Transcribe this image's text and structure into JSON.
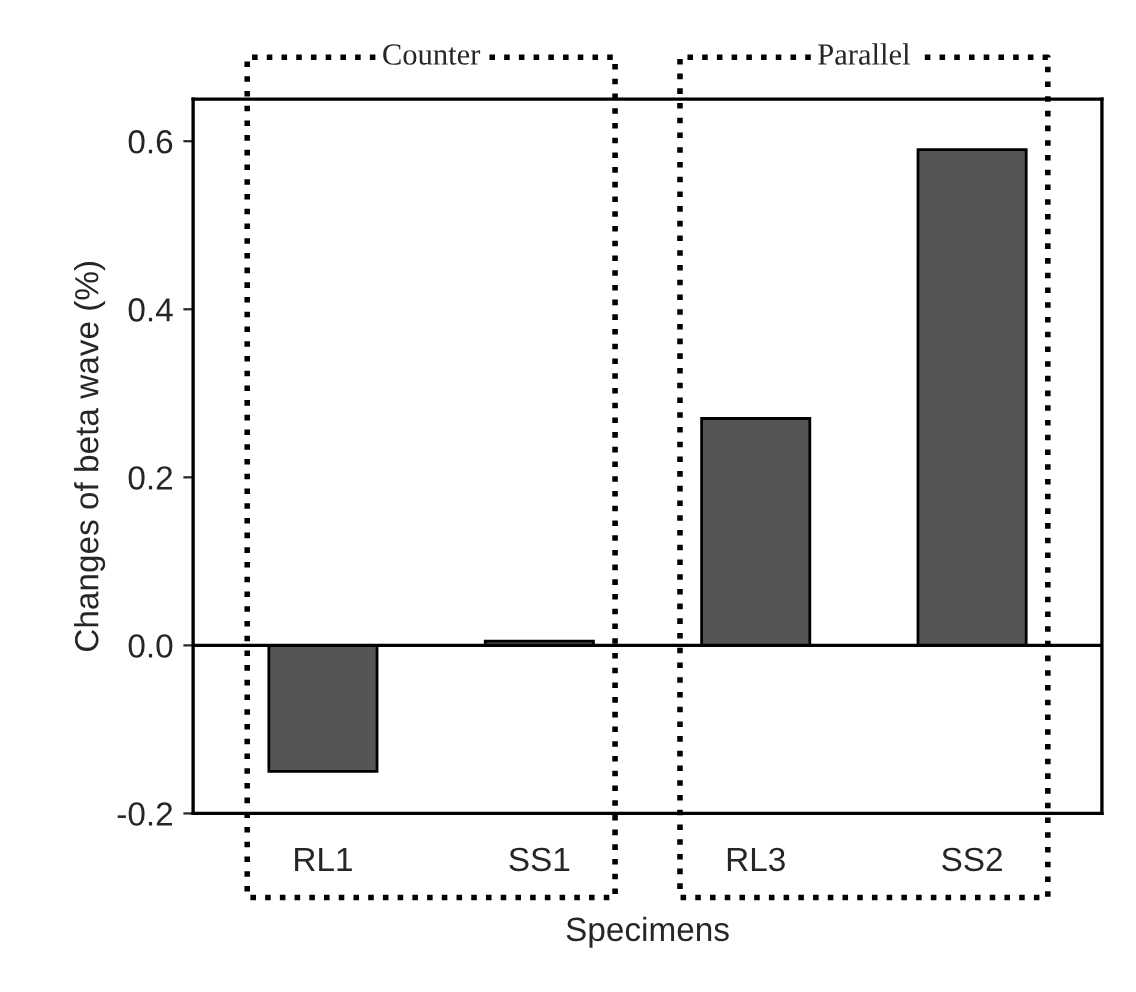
{
  "chart_data": {
    "type": "bar",
    "categories": [
      "RL1",
      "SS1",
      "RL3",
      "SS2"
    ],
    "values": [
      -0.15,
      0.005,
      0.27,
      0.59
    ],
    "color": "#555555",
    "xlabel": "Specimens",
    "ylabel": "Changes of beta wave (%)",
    "ylim": [
      -0.2,
      0.65
    ],
    "yticks": [
      -0.2,
      {
        "value": 0,
        "label": "0.0"
      },
      0.2,
      0.4,
      0.6
    ],
    "ref_lines": [
      {
        "axis": "y",
        "value": 0,
        "color": "#000000",
        "line_style": "solid"
      }
    ],
    "annotations": [
      "Counter",
      "Parallel"
    ],
    "grid": false,
    "legend": false
  }
}
